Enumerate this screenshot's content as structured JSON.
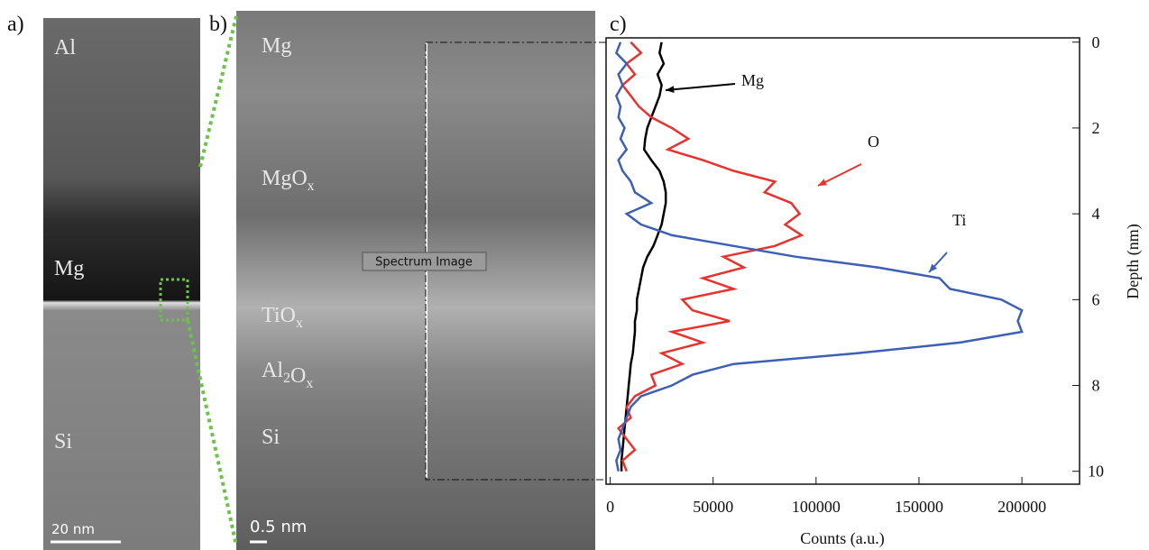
{
  "figure": {
    "panel_labels": [
      "a)",
      "b)",
      "c)"
    ],
    "image_a": {
      "labels": [
        {
          "parts": [
            {
              "t": "Al"
            }
          ]
        },
        {
          "parts": [
            {
              "t": "Mg"
            }
          ]
        },
        {
          "parts": [
            {
              "t": "Si"
            }
          ]
        }
      ],
      "scale_bar": "20 nm"
    },
    "image_b": {
      "labels": [
        {
          "parts": [
            {
              "t": "Mg"
            }
          ]
        },
        {
          "parts": [
            {
              "t": "MgO"
            },
            {
              "sub": "x"
            }
          ]
        },
        {
          "parts": [
            {
              "t": "TiO"
            },
            {
              "sub": "x"
            }
          ]
        },
        {
          "parts": [
            {
              "t": "Al"
            },
            {
              "sub": "2"
            },
            {
              "t": "O"
            },
            {
              "sub": "x"
            }
          ]
        },
        {
          "parts": [
            {
              "t": "Si"
            }
          ]
        }
      ],
      "scale_bar": "0.5 nm",
      "region_label": "Spectrum Image"
    }
  },
  "chart_data": {
    "type": "line",
    "x_label": "Counts (a.u.)",
    "y_label": "Depth (nm)",
    "xlim": [
      -2000,
      228000
    ],
    "ylim": [
      10.3,
      -0.1
    ],
    "xticks": [
      0,
      50000,
      100000,
      150000,
      200000
    ],
    "yticks": [
      0,
      2,
      4,
      6,
      8,
      10
    ],
    "y": [
      0,
      0.25,
      0.5,
      0.75,
      1,
      1.25,
      1.5,
      1.75,
      2,
      2.25,
      2.5,
      2.75,
      3,
      3.25,
      3.5,
      3.75,
      4,
      4.25,
      4.5,
      4.75,
      5,
      5.25,
      5.5,
      5.75,
      6,
      6.25,
      6.5,
      6.75,
      7,
      7.25,
      7.5,
      7.75,
      8,
      8.25,
      8.5,
      8.75,
      9,
      9.25,
      9.5,
      9.75,
      10
    ],
    "series": [
      {
        "name": "Mg",
        "color": "#000000",
        "values": [
          25000,
          24000,
          26000,
          23000,
          25000,
          24000,
          22000,
          20000,
          18000,
          17000,
          16500,
          20000,
          24000,
          26000,
          27000,
          27000,
          26000,
          25000,
          23000,
          21000,
          18000,
          16000,
          15000,
          14000,
          13000,
          13000,
          12000,
          12000,
          11500,
          11000,
          10000,
          9500,
          9000,
          8500,
          8000,
          7500,
          7000,
          6500,
          6000,
          5500,
          5500
        ]
      },
      {
        "name": "O",
        "color": "#e8322e",
        "values": [
          10000,
          15000,
          8000,
          12000,
          6000,
          10000,
          14000,
          20000,
          30000,
          38000,
          28000,
          45000,
          60000,
          80000,
          75000,
          88000,
          92000,
          85000,
          93000,
          80000,
          55000,
          65000,
          45000,
          60000,
          35000,
          40000,
          58000,
          30000,
          45000,
          25000,
          35000,
          20000,
          22000,
          12000,
          8000,
          10000,
          4000,
          8000,
          12000,
          6000,
          8000
        ]
      },
      {
        "name": "Ti",
        "color": "#3d5fb5",
        "values": [
          5000,
          3000,
          8000,
          4000,
          6000,
          3000,
          5000,
          4000,
          7000,
          5000,
          8000,
          4000,
          6000,
          10000,
          12000,
          20000,
          8000,
          15000,
          30000,
          60000,
          90000,
          130000,
          160000,
          165000,
          190000,
          200000,
          198000,
          200000,
          170000,
          120000,
          60000,
          40000,
          30000,
          15000,
          10000,
          8000,
          6000,
          4000,
          5000,
          3000,
          4000
        ]
      }
    ]
  }
}
